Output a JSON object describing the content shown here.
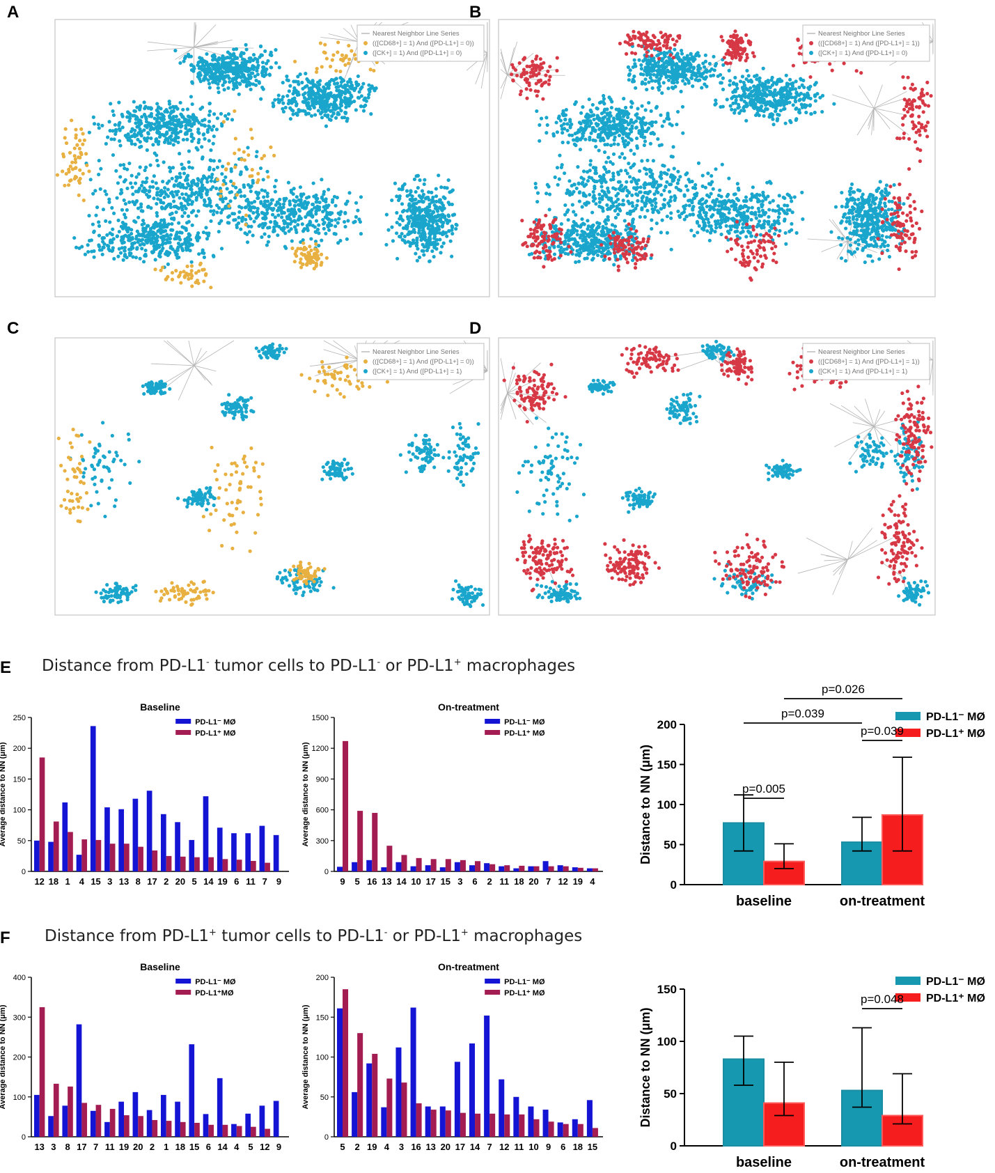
{
  "panel_labels": [
    "A",
    "B",
    "C",
    "D",
    "E",
    "F"
  ],
  "colors": {
    "tumor": "#1aa6cc",
    "macro_neg": "#e8b040",
    "macro_pos": "#d63845",
    "pdl1_neg_bar": "#1414d4",
    "pdl1_pos_bar": "#a31d52",
    "summary_neg": "#1699b0",
    "summary_pos": "#f51d1d",
    "nn_line": "#b5b5b5"
  },
  "section_headings": {
    "E": {
      "pre": "Distance from PD-L1",
      "sup1": "-",
      "mid": " tumor cells to PD-L1",
      "sup2": "-",
      "mid2": " or PD-L1",
      "sup3": "+",
      "post": " macrophages"
    },
    "F": {
      "pre": "Distance from PD-L1",
      "sup1": "+",
      "mid": " tumor cells to PD-L1",
      "sup2": "-",
      "mid2": " or PD-L1",
      "sup3": "+",
      "post": " macrophages"
    }
  },
  "chart_data": [
    {
      "id": "A",
      "type": "scatter",
      "legend": [
        "Nearest Neighbor Line Series",
        "(([CD68+] = 1) And ([PD-L1+] = 0))",
        "([CK+] = 1) And ([PD-L1+] = 0)"
      ]
    },
    {
      "id": "B",
      "type": "scatter",
      "legend": [
        "Nearest Neighbor Line Series",
        "(([CD68+] = 1) And ([PD-L1+] = 1))",
        "([CK+] = 1) And ([PD-L1+] = 0)"
      ]
    },
    {
      "id": "C",
      "type": "scatter",
      "legend": [
        "Nearest Neighbor Line Series",
        "(([CD68+] = 1) And ([PD-L1+] = 0))",
        "([CK+] = 1) And ([PD-L1+] = 1)"
      ]
    },
    {
      "id": "D",
      "type": "scatter",
      "legend": [
        "Nearest Neighbor Line Series",
        "(([CD68+] = 1) And ([PD-L1+] = 1))",
        "([CK+] = 1) And ([PD-L1+] = 1)"
      ]
    },
    {
      "id": "E-baseline",
      "type": "bar",
      "title": "Baseline",
      "ylabel": "Average distance to NN (μm)",
      "ylim": [
        0,
        250
      ],
      "yticks": [
        0,
        50,
        100,
        150,
        200,
        250
      ],
      "categories": [
        "12",
        "18",
        "1",
        "4",
        "15",
        "3",
        "13",
        "8",
        "17",
        "2",
        "20",
        "5",
        "14",
        "19",
        "6",
        "11",
        "7",
        "9"
      ],
      "series": [
        {
          "name": "PD-L1⁻ MØ",
          "values": [
            50,
            48,
            112,
            27,
            236,
            104,
            101,
            118,
            131,
            93,
            80,
            51,
            122,
            71,
            62,
            62,
            74,
            59
          ]
        },
        {
          "name": "PD-L1⁺ MØ",
          "values": [
            185,
            81,
            64,
            52,
            51,
            45,
            45,
            40,
            34,
            25,
            24,
            23,
            23,
            20,
            19,
            17,
            14,
            0
          ]
        }
      ]
    },
    {
      "id": "E-ontreatment",
      "type": "bar",
      "title": "On-treatment",
      "ylabel": "Average distance to NN (μm)",
      "ylim": [
        0,
        1500
      ],
      "yticks": [
        0,
        300,
        600,
        900,
        1200,
        1500
      ],
      "categories": [
        "9",
        "5",
        "16",
        "13",
        "14",
        "10",
        "17",
        "15",
        "3",
        "6",
        "2",
        "11",
        "18",
        "20",
        "7",
        "12",
        "19",
        "4"
      ],
      "series": [
        {
          "name": "PD-L1⁻ MØ",
          "values": [
            45,
            90,
            110,
            40,
            90,
            50,
            60,
            40,
            90,
            60,
            80,
            50,
            30,
            50,
            100,
            60,
            40,
            30
          ]
        },
        {
          "name": "PD-L1⁺ MØ",
          "values": [
            1270,
            590,
            570,
            250,
            160,
            130,
            120,
            120,
            110,
            100,
            70,
            60,
            55,
            50,
            50,
            50,
            35,
            30
          ]
        }
      ]
    },
    {
      "id": "E-summary",
      "type": "bar",
      "ylabel": "Distance to NN (μm)",
      "ylim": [
        0,
        200
      ],
      "yticks": [
        0,
        50,
        100,
        150,
        200
      ],
      "categories": [
        "baseline",
        "on-treatment"
      ],
      "series": [
        {
          "name": "PD-L1⁻ MØ",
          "values": [
            77,
            53
          ],
          "err_low": [
            42,
            42
          ],
          "err_high": [
            112,
            84
          ]
        },
        {
          "name": "PD-L1⁺ MØ",
          "values": [
            29,
            87
          ],
          "err_low": [
            20,
            42
          ],
          "err_high": [
            51,
            159
          ]
        }
      ],
      "annotations": [
        "p=0.005",
        "p=0.039",
        "p=0.039",
        "p=0.026"
      ]
    },
    {
      "id": "F-baseline",
      "type": "bar",
      "title": "Baseline",
      "ylabel": "Average distance to NN (μm)",
      "ylim": [
        0,
        400
      ],
      "yticks": [
        0,
        100,
        200,
        300,
        400
      ],
      "categories": [
        "13",
        "3",
        "8",
        "17",
        "7",
        "11",
        "19",
        "20",
        "2",
        "1",
        "18",
        "15",
        "6",
        "14",
        "4",
        "5",
        "12",
        "9"
      ],
      "series": [
        {
          "name": "PD-L1⁻ MØ",
          "values": [
            105,
            52,
            78,
            282,
            65,
            37,
            88,
            112,
            67,
            105,
            88,
            232,
            57,
            147,
            32,
            58,
            78,
            90
          ]
        },
        {
          "name": "PD-L1⁺MØ",
          "values": [
            325,
            133,
            126,
            85,
            80,
            70,
            54,
            52,
            42,
            40,
            37,
            35,
            30,
            30,
            27,
            25,
            20,
            0
          ]
        }
      ]
    },
    {
      "id": "F-ontreatment",
      "type": "bar",
      "title": "On-treatment",
      "ylabel": "Average distance to NN (μm)",
      "ylim": [
        0,
        200
      ],
      "yticks": [
        0,
        50,
        100,
        150,
        200
      ],
      "categories": [
        "5",
        "2",
        "19",
        "4",
        "3",
        "16",
        "13",
        "20",
        "17",
        "14",
        "7",
        "12",
        "11",
        "10",
        "9",
        "6",
        "18",
        "15"
      ],
      "series": [
        {
          "name": "PD-L1⁻ MØ",
          "values": [
            161,
            56,
            92,
            37,
            112,
            162,
            38,
            38,
            94,
            117,
            152,
            72,
            50,
            38,
            34,
            18,
            22,
            46
          ]
        },
        {
          "name": "PD-L1⁺ MØ",
          "values": [
            185,
            130,
            104,
            73,
            68,
            42,
            34,
            33,
            30,
            29,
            29,
            28,
            28,
            22,
            19,
            16,
            16,
            11
          ]
        }
      ]
    },
    {
      "id": "F-summary",
      "type": "bar",
      "ylabel": "Distance to NN (μm)",
      "ylim": [
        0,
        150
      ],
      "yticks": [
        0,
        50,
        100,
        150
      ],
      "categories": [
        "baseline",
        "on-treatment"
      ],
      "series": [
        {
          "name": "PD-L1⁻ MØ",
          "values": [
            83,
            53
          ],
          "err_low": [
            58,
            37
          ],
          "err_high": [
            105,
            113
          ]
        },
        {
          "name": "PD-L1⁺ MØ",
          "values": [
            41,
            29
          ],
          "err_low": [
            29,
            21
          ],
          "err_high": [
            80,
            69
          ]
        }
      ],
      "annotations": [
        "p=0.048"
      ]
    }
  ]
}
